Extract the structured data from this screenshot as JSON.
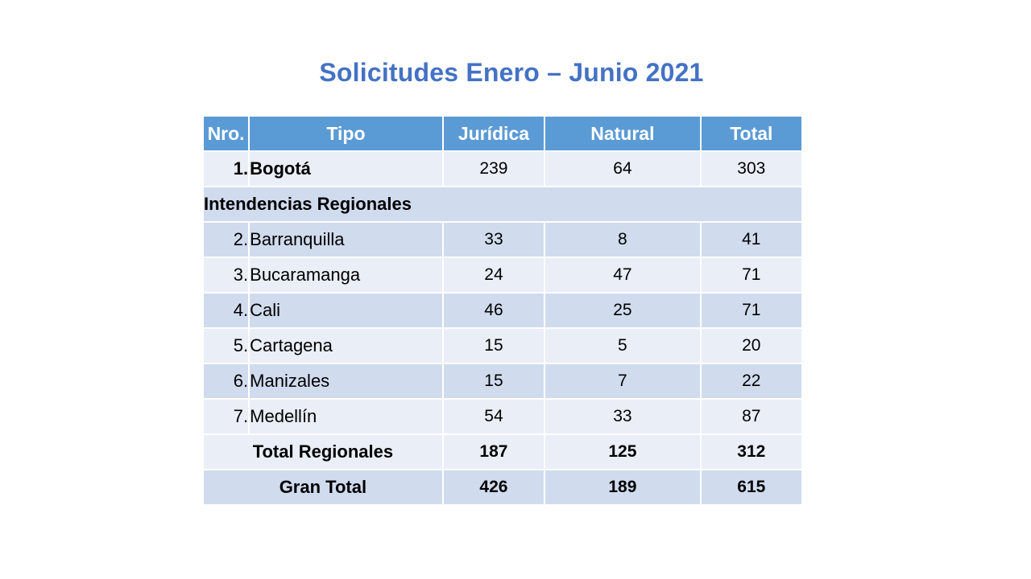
{
  "title": "Solicitudes Enero – Junio 2021",
  "table": {
    "headers": {
      "nro": "Nro.",
      "tipo": "Tipo",
      "juridica": "Jurídica",
      "natural": "Natural",
      "total": "Total"
    },
    "bogota": {
      "nro": "1.",
      "tipo": "Bogotá",
      "juridica": "239",
      "natural": "64",
      "total": "303"
    },
    "section_label": "Intendencias Regionales",
    "regionales": [
      {
        "nro": "2.",
        "tipo": "Barranquilla",
        "juridica": "33",
        "natural": "8",
        "total": "41"
      },
      {
        "nro": "3.",
        "tipo": "Bucaramanga",
        "juridica": "24",
        "natural": "47",
        "total": "71"
      },
      {
        "nro": "4.",
        "tipo": "Cali",
        "juridica": "46",
        "natural": "25",
        "total": "71"
      },
      {
        "nro": "5.",
        "tipo": "Cartagena",
        "juridica": "15",
        "natural": "5",
        "total": "20"
      },
      {
        "nro": "6.",
        "tipo": "Manizales",
        "juridica": "15",
        "natural": "7",
        "total": "22"
      },
      {
        "nro": "7.",
        "tipo": "Medellín",
        "juridica": "54",
        "natural": "33",
        "total": "87"
      }
    ],
    "total_regionales": {
      "label": "Total Regionales",
      "juridica": "187",
      "natural": "125",
      "total": "312"
    },
    "gran_total": {
      "label": "Gran Total",
      "juridica": "426",
      "natural": "189",
      "total": "615"
    }
  },
  "colors": {
    "title": "#4472c4",
    "header_bg": "#5b9bd5",
    "row_light": "#e9eef7",
    "row_dark": "#d0dbee"
  }
}
